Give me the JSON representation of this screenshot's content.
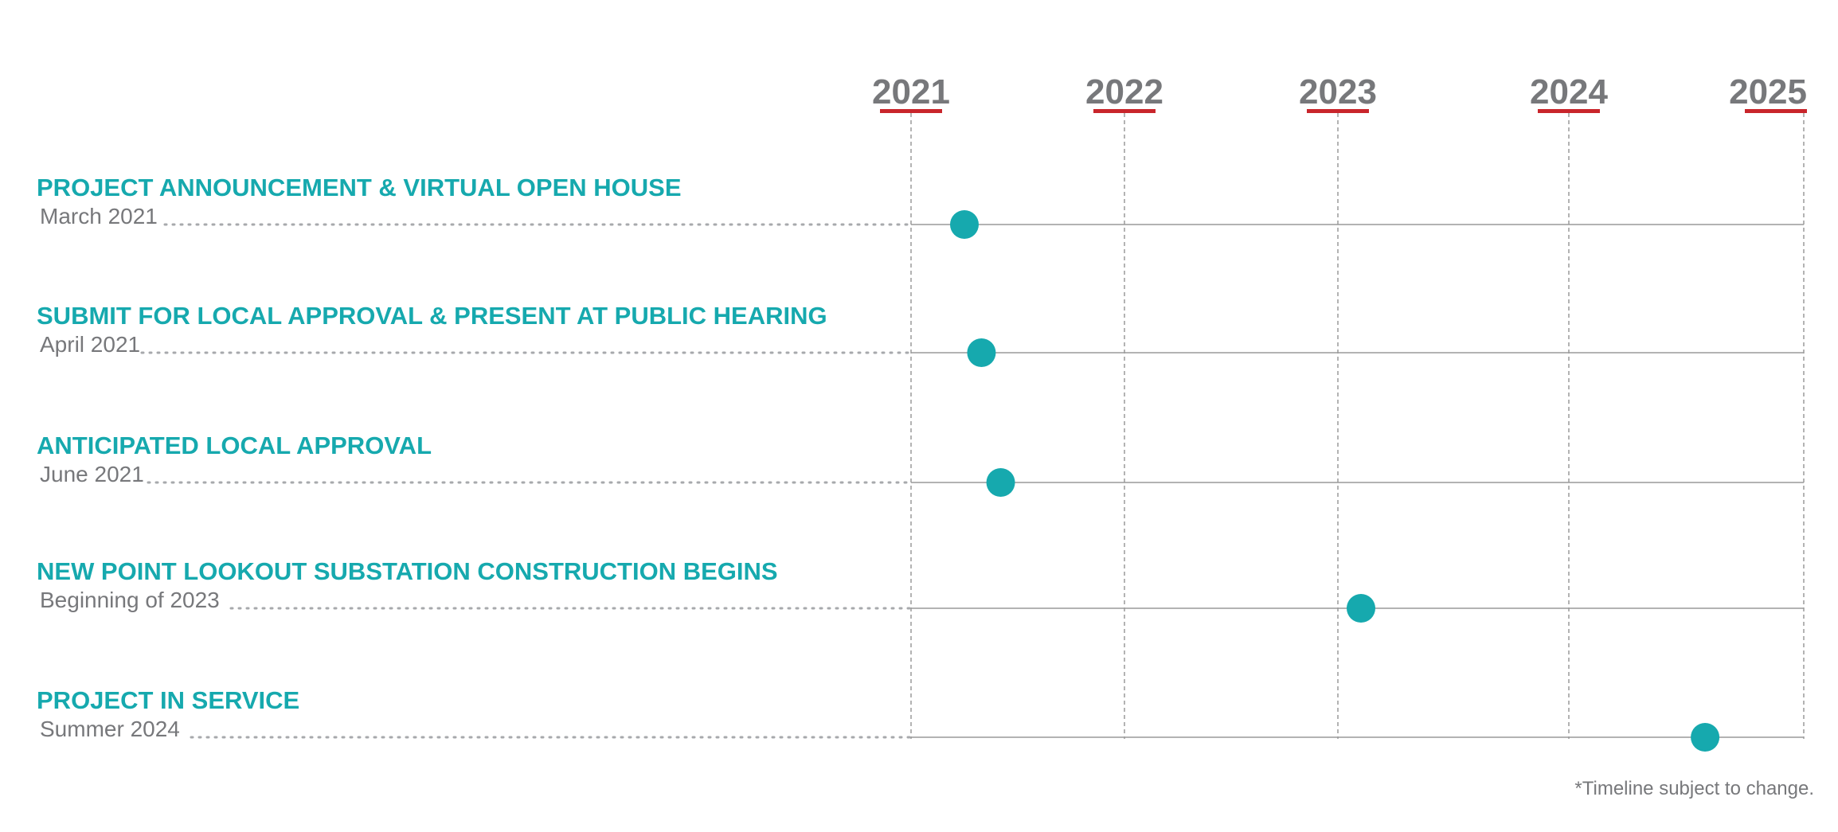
{
  "colors": {
    "accent": "#16a9ae",
    "year_underline": "#c9252b",
    "text_gray": "#77787b",
    "grid_gray": "#9a9a9a"
  },
  "chart_data": {
    "type": "timeline",
    "x_axis": {
      "ticks": [
        "2021",
        "2022",
        "2023",
        "2024",
        "2025"
      ],
      "range": [
        2021,
        2025
      ]
    },
    "events": [
      {
        "title": "PROJECT ANNOUNCEMENT & VIRTUAL OPEN HOUSE",
        "date_label": "March 2021",
        "x": 2021.25
      },
      {
        "title": "SUBMIT FOR LOCAL APPROVAL & PRESENT AT PUBLIC HEARING",
        "date_label": "April 2021",
        "x": 2021.33
      },
      {
        "title": "ANTICIPATED LOCAL APPROVAL",
        "date_label": "June 2021",
        "x": 2021.42
      },
      {
        "title": "NEW POINT LOOKOUT SUBSTATION CONSTRUCTION BEGINS",
        "date_label": "Beginning of 2023",
        "x": 2023.1
      },
      {
        "title": "PROJECT IN SERVICE",
        "date_label": "Summer 2024",
        "x": 2024.58
      }
    ],
    "footnote": "*Timeline subject to change."
  }
}
